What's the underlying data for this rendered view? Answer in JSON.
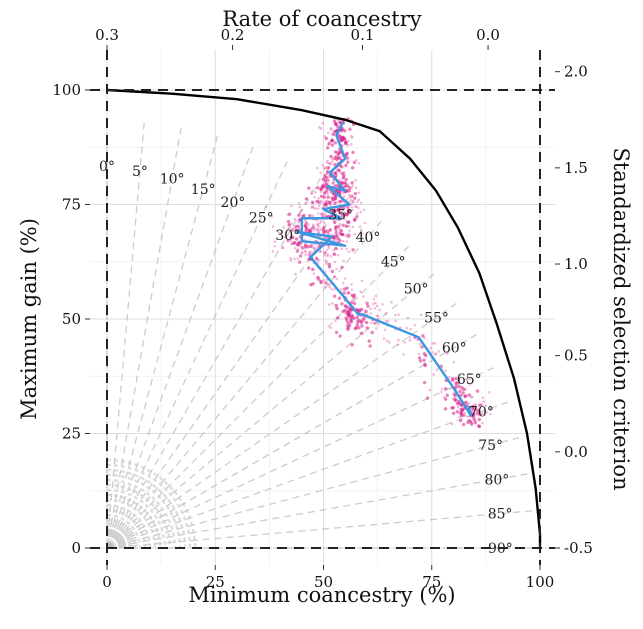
{
  "chart_data": {
    "type": "scatter",
    "title": "",
    "xlabel": "Minimum coancestry (%)",
    "ylabel": "Maximum gain (%)",
    "top_axis_label": "Rate of coancestry",
    "right_axis_label": "Standardized selection criterion",
    "xlim": [
      0,
      100
    ],
    "ylim": [
      0,
      100
    ],
    "x_ticks": [
      "0",
      "25",
      "50",
      "75",
      "100"
    ],
    "y_ticks": [
      "0",
      "25",
      "50",
      "75",
      "100"
    ],
    "top_ticks": [
      {
        "label": "0.3",
        "x": 0
      },
      {
        "label": "0.2",
        "x": 29
      },
      {
        "label": "0.1",
        "x": 59
      },
      {
        "label": "0.0",
        "x": 88
      }
    ],
    "right_ticks": [
      {
        "label": "-0.5",
        "y": 0
      },
      {
        "label": "0.0",
        "y": 21
      },
      {
        "label": "0.5",
        "y": 42
      },
      {
        "label": "1.0",
        "y": 62
      },
      {
        "label": "1.5",
        "y": 83
      },
      {
        "label": "2.0",
        "y": 104
      }
    ],
    "angle_labels": [
      "0°",
      "5°",
      "10°",
      "15°",
      "20°",
      "25°",
      "30°",
      "35°",
      "40°",
      "45°",
      "50°",
      "55°",
      "60°",
      "65°",
      "70°",
      "75°",
      "80°",
      "85°",
      "90°"
    ],
    "grid": true,
    "frontier": {
      "x": [
        0,
        15,
        30,
        45,
        55,
        63,
        70,
        76,
        81,
        86,
        90,
        94,
        97,
        99,
        100,
        100
      ],
      "y": [
        100,
        99.2,
        98,
        95.6,
        93.5,
        91,
        85,
        78,
        70,
        60,
        49,
        37,
        25,
        13,
        3,
        0
      ]
    },
    "path": {
      "x": [
        54.5,
        53,
        55,
        51.5,
        55,
        51,
        56,
        50,
        54,
        45,
        45,
        55,
        44,
        52,
        47,
        55,
        58,
        59,
        72,
        80,
        84,
        83.5
      ],
      "y": [
        93,
        90,
        85,
        82,
        78,
        79,
        75,
        74,
        72,
        72,
        67,
        66,
        69,
        68,
        63.5,
        54.5,
        51,
        51,
        46,
        35,
        29,
        31
      ]
    },
    "colors": {
      "frontier": "#000000",
      "path": "#3b98e0",
      "points": "#d81b89",
      "guides": "#bbbbbb",
      "reference": "#222222"
    }
  }
}
